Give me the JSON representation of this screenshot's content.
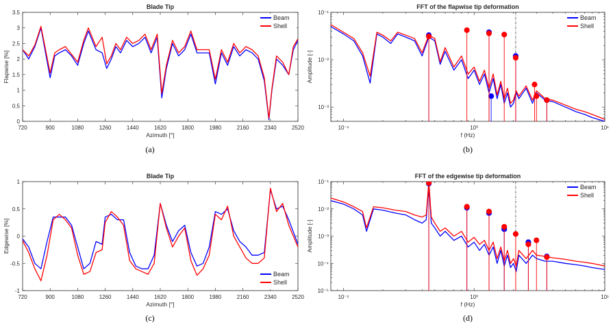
{
  "chart_data": [
    {
      "id": "a",
      "type": "line",
      "title": "Blade Tip",
      "xlabel": "Azimuth [°]",
      "ylabel": "Flapwise [%]",
      "caption": "(a)",
      "xlim": [
        720,
        2520
      ],
      "ylim": [
        0,
        3.5
      ],
      "xticks": [
        720,
        900,
        1080,
        1260,
        1440,
        1620,
        1800,
        1980,
        2160,
        2340,
        2520
      ],
      "yticks": [
        0,
        0.5,
        1,
        1.5,
        2,
        2.5,
        3,
        3.5
      ],
      "ytick_labels": [
        "0",
        "0.5",
        "1",
        "1.5",
        "2",
        "2.5",
        "3",
        "3.5"
      ],
      "legend_position": "top-right",
      "series": [
        {
          "name": "Beam",
          "color": "#0000ff",
          "x": [
            720,
            760,
            800,
            840,
            870,
            900,
            930,
            960,
            1000,
            1040,
            1080,
            1120,
            1150,
            1200,
            1240,
            1270,
            1300,
            1330,
            1360,
            1400,
            1440,
            1480,
            1520,
            1560,
            1600,
            1630,
            1660,
            1700,
            1740,
            1780,
            1820,
            1860,
            1900,
            1940,
            1980,
            2020,
            2060,
            2100,
            2140,
            2180,
            2220,
            2260,
            2300,
            2330,
            2350,
            2380,
            2420,
            2460,
            2490,
            2520
          ],
          "y": [
            2.3,
            2.0,
            2.4,
            3.0,
            2.2,
            1.4,
            2.1,
            2.2,
            2.3,
            2.1,
            1.8,
            2.5,
            2.9,
            2.3,
            2.2,
            1.7,
            2.0,
            2.4,
            2.2,
            2.6,
            2.4,
            2.5,
            2.7,
            2.2,
            2.7,
            0.75,
            1.7,
            2.5,
            2.1,
            2.3,
            2.8,
            2.2,
            2.2,
            2.2,
            1.2,
            2.2,
            1.8,
            2.4,
            2.1,
            2.3,
            2.2,
            2.0,
            1.3,
            0.05,
            1.0,
            2.0,
            1.8,
            1.5,
            2.3,
            2.6
          ]
        },
        {
          "name": "Shell",
          "color": "#ff0000",
          "x": [
            720,
            760,
            800,
            840,
            870,
            900,
            930,
            960,
            1000,
            1040,
            1080,
            1120,
            1150,
            1200,
            1240,
            1270,
            1300,
            1330,
            1360,
            1400,
            1440,
            1480,
            1520,
            1560,
            1600,
            1630,
            1660,
            1700,
            1740,
            1780,
            1820,
            1860,
            1900,
            1940,
            1980,
            2020,
            2060,
            2100,
            2140,
            2180,
            2220,
            2260,
            2300,
            2330,
            2350,
            2380,
            2420,
            2460,
            2490,
            2520
          ],
          "y": [
            2.3,
            2.1,
            2.45,
            3.05,
            2.3,
            1.55,
            2.2,
            2.3,
            2.4,
            2.15,
            1.9,
            2.6,
            3.0,
            2.4,
            2.7,
            1.85,
            2.1,
            2.5,
            2.3,
            2.7,
            2.5,
            2.6,
            2.8,
            2.3,
            2.8,
            0.9,
            1.8,
            2.6,
            2.2,
            2.4,
            2.9,
            2.3,
            2.3,
            2.3,
            1.35,
            2.3,
            1.9,
            2.5,
            2.2,
            2.4,
            2.3,
            2.1,
            1.4,
            0.1,
            1.05,
            2.1,
            1.9,
            1.5,
            2.4,
            2.65
          ]
        }
      ]
    },
    {
      "id": "b",
      "type": "line",
      "title": "FFT of the flapwise tip deformation",
      "xlabel": "f (Hz)",
      "ylabel": "Amplitude [-]",
      "caption": "(b)",
      "xscale": "log",
      "yscale": "log",
      "xlim": [
        0.08,
        10
      ],
      "ylim": [
        0.0005,
        0.1
      ],
      "xtick_labels": [
        "10^-1",
        "10^0",
        "10^1"
      ],
      "ytick_labels": [
        "10^-3",
        "10^-2",
        "10^-1"
      ],
      "vline_x": 2.08,
      "legend_position": "top-right",
      "series": [
        {
          "name": "Beam",
          "color": "#0000ff",
          "x": [
            0.08,
            0.1,
            0.12,
            0.14,
            0.16,
            0.18,
            0.2,
            0.23,
            0.26,
            0.3,
            0.35,
            0.4,
            0.45,
            0.5,
            0.55,
            0.6,
            0.7,
            0.8,
            0.9,
            1.0,
            1.1,
            1.2,
            1.3,
            1.4,
            1.5,
            1.6,
            1.7,
            1.8,
            1.9,
            2.0,
            2.1,
            2.2,
            2.5,
            2.8,
            3.0,
            3.5,
            4.0,
            5,
            6,
            7,
            8,
            10
          ],
          "y": [
            0.05,
            0.035,
            0.025,
            0.012,
            0.0032,
            0.035,
            0.03,
            0.022,
            0.035,
            0.03,
            0.025,
            0.012,
            0.03,
            0.025,
            0.008,
            0.015,
            0.006,
            0.01,
            0.004,
            0.006,
            0.003,
            0.005,
            0.002,
            0.004,
            0.0015,
            0.003,
            0.0012,
            0.002,
            0.001,
            0.0012,
            0.002,
            0.0015,
            0.0025,
            0.0012,
            0.002,
            0.0014,
            0.0013,
            0.001,
            0.0008,
            0.0007,
            0.0006,
            0.0005
          ]
        },
        {
          "name": "Shell",
          "color": "#ff0000",
          "x": [
            0.08,
            0.1,
            0.12,
            0.14,
            0.16,
            0.18,
            0.2,
            0.23,
            0.26,
            0.3,
            0.35,
            0.4,
            0.45,
            0.5,
            0.55,
            0.6,
            0.7,
            0.8,
            0.9,
            1.0,
            1.1,
            1.2,
            1.3,
            1.4,
            1.5,
            1.6,
            1.7,
            1.8,
            1.9,
            2.0,
            2.1,
            2.2,
            2.5,
            2.8,
            3.0,
            3.5,
            4.0,
            5,
            6,
            7,
            8,
            10
          ],
          "y": [
            0.055,
            0.038,
            0.028,
            0.014,
            0.0045,
            0.038,
            0.033,
            0.025,
            0.038,
            0.033,
            0.028,
            0.014,
            0.033,
            0.028,
            0.009,
            0.018,
            0.007,
            0.012,
            0.005,
            0.007,
            0.0035,
            0.006,
            0.0025,
            0.005,
            0.0018,
            0.0035,
            0.0015,
            0.0025,
            0.0012,
            0.0014,
            0.0022,
            0.0017,
            0.0028,
            0.0014,
            0.0022,
            0.0015,
            0.0014,
            0.0011,
            0.0009,
            0.0008,
            0.0007,
            0.00055
          ]
        }
      ],
      "markers": [
        {
          "series": "Beam",
          "x": [
            0.45,
            1.3,
            2.08,
            1.35,
            3.6
          ],
          "y": [
            0.033,
            0.038,
            0.012,
            0.0017,
            0.0014
          ]
        },
        {
          "series": "Shell",
          "x": [
            0.45,
            0.88,
            1.3,
            1.7,
            2.08,
            2.9,
            3.0,
            3.6
          ],
          "y": [
            0.031,
            0.042,
            0.036,
            0.034,
            0.011,
            0.003,
            0.0017,
            0.0014
          ]
        }
      ]
    },
    {
      "id": "c",
      "type": "line",
      "title": "Blade Tip",
      "xlabel": "Azimuth [°]",
      "ylabel": "Edgewise [%]",
      "caption": "(c)",
      "xlim": [
        720,
        2520
      ],
      "ylim": [
        -1,
        1
      ],
      "xticks": [
        720,
        900,
        1080,
        1260,
        1440,
        1620,
        1800,
        1980,
        2160,
        2340,
        2520
      ],
      "yticks": [
        -1,
        -0.5,
        0,
        0.5,
        1
      ],
      "ytick_labels": [
        "-1",
        "-0.5",
        "0",
        "0.5",
        "1"
      ],
      "legend_position": "bottom-right",
      "series": [
        {
          "name": "Beam",
          "color": "#0000ff",
          "x": [
            720,
            760,
            800,
            840,
            880,
            920,
            960,
            1000,
            1040,
            1080,
            1120,
            1160,
            1200,
            1240,
            1260,
            1300,
            1340,
            1380,
            1420,
            1460,
            1500,
            1540,
            1580,
            1620,
            1660,
            1700,
            1740,
            1780,
            1820,
            1860,
            1900,
            1940,
            1980,
            2020,
            2060,
            2100,
            2140,
            2180,
            2220,
            2260,
            2300,
            2340,
            2380,
            2420,
            2460,
            2520
          ],
          "y": [
            -0.05,
            -0.2,
            -0.5,
            -0.6,
            -0.1,
            0.35,
            0.35,
            0.35,
            0.2,
            -0.2,
            -0.6,
            -0.5,
            -0.1,
            -0.15,
            0.35,
            0.4,
            0.3,
            0.3,
            -0.3,
            -0.55,
            -0.6,
            -0.6,
            -0.35,
            0.6,
            0.2,
            -0.1,
            0.1,
            0.2,
            -0.3,
            -0.55,
            -0.5,
            -0.2,
            0.45,
            0.4,
            0.5,
            0.1,
            -0.1,
            -0.2,
            -0.35,
            -0.35,
            -0.3,
            0.85,
            0.5,
            0.55,
            0.3,
            -0.15
          ]
        },
        {
          "name": "Shell",
          "color": "#ff0000",
          "x": [
            720,
            760,
            800,
            840,
            880,
            920,
            960,
            1000,
            1040,
            1080,
            1120,
            1160,
            1200,
            1240,
            1260,
            1300,
            1340,
            1380,
            1420,
            1460,
            1500,
            1540,
            1580,
            1620,
            1660,
            1700,
            1740,
            1780,
            1820,
            1860,
            1900,
            1940,
            1980,
            2020,
            2060,
            2100,
            2140,
            2180,
            2220,
            2260,
            2300,
            2340,
            2380,
            2420,
            2460,
            2520
          ],
          "y": [
            -0.08,
            -0.3,
            -0.6,
            -0.82,
            -0.35,
            0.3,
            0.4,
            0.3,
            0.15,
            -0.35,
            -0.7,
            -0.65,
            -0.3,
            -0.25,
            0.25,
            0.45,
            0.35,
            0.2,
            -0.45,
            -0.6,
            -0.65,
            -0.7,
            -0.5,
            0.6,
            0.15,
            -0.2,
            0.0,
            0.15,
            -0.45,
            -0.72,
            -0.6,
            -0.35,
            0.4,
            0.3,
            0.55,
            0.0,
            -0.2,
            -0.4,
            -0.5,
            -0.5,
            -0.4,
            0.88,
            0.45,
            0.6,
            0.2,
            -0.2
          ]
        }
      ]
    },
    {
      "id": "d",
      "type": "line",
      "title": "FFT of the edgewise tip deformation",
      "xlabel": "f (Hz)",
      "ylabel": "Amplitude [-]",
      "caption": "(d)",
      "xscale": "log",
      "yscale": "log",
      "xlim": [
        0.08,
        10
      ],
      "ylim": [
        1e-05,
        0.1
      ],
      "xtick_labels": [
        "10^-1",
        "10^0",
        "10^1"
      ],
      "ytick_labels": [
        "10^-5",
        "10^-4",
        "10^-3",
        "10^-2",
        "10^-1"
      ],
      "vline_x": 2.08,
      "legend_position": "top-right",
      "series": [
        {
          "name": "Beam",
          "color": "#0000ff",
          "x": [
            0.08,
            0.1,
            0.12,
            0.14,
            0.15,
            0.17,
            0.2,
            0.25,
            0.3,
            0.35,
            0.4,
            0.43,
            0.45,
            0.47,
            0.5,
            0.55,
            0.6,
            0.7,
            0.8,
            0.9,
            1.0,
            1.1,
            1.2,
            1.3,
            1.4,
            1.5,
            1.6,
            1.7,
            1.8,
            1.9,
            2.0,
            2.1,
            2.2,
            2.5,
            2.8,
            3.0,
            3.5,
            4.0,
            5,
            6,
            7,
            8,
            10
          ],
          "y": [
            0.02,
            0.015,
            0.01,
            0.006,
            0.0015,
            0.01,
            0.009,
            0.007,
            0.006,
            0.004,
            0.003,
            0.004,
            0.09,
            0.003,
            0.002,
            0.001,
            0.0015,
            0.0007,
            0.001,
            0.0004,
            0.0006,
            0.0003,
            0.0005,
            0.0002,
            0.0004,
            0.0001,
            0.0003,
            8e-05,
            0.0002,
            7e-05,
            0.0001,
            5e-05,
            0.0002,
            0.0001,
            0.0002,
            0.00015,
            0.00012,
            0.00012,
            0.0001,
            9e-05,
            8e-05,
            7e-05,
            6e-05
          ]
        },
        {
          "name": "Shell",
          "color": "#ff0000",
          "x": [
            0.08,
            0.1,
            0.12,
            0.14,
            0.15,
            0.17,
            0.2,
            0.25,
            0.3,
            0.35,
            0.4,
            0.43,
            0.45,
            0.47,
            0.5,
            0.55,
            0.6,
            0.7,
            0.8,
            0.9,
            1.0,
            1.1,
            1.2,
            1.3,
            1.4,
            1.5,
            1.6,
            1.7,
            1.8,
            1.9,
            2.0,
            2.1,
            2.2,
            2.5,
            2.8,
            3.0,
            3.5,
            4.0,
            5,
            6,
            7,
            8,
            10
          ],
          "y": [
            0.025,
            0.018,
            0.012,
            0.008,
            0.002,
            0.012,
            0.011,
            0.009,
            0.008,
            0.006,
            0.005,
            0.006,
            0.1,
            0.005,
            0.003,
            0.0015,
            0.002,
            0.001,
            0.0015,
            0.0006,
            0.0009,
            0.0005,
            0.0007,
            0.0003,
            0.0006,
            0.00015,
            0.0004,
            0.00012,
            0.0003,
            0.0001,
            0.00015,
            8e-05,
            0.0003,
            0.00015,
            0.0003,
            0.0002,
            0.00018,
            0.00016,
            0.00014,
            0.00012,
            0.00011,
            0.0001,
            8e-05
          ]
        }
      ],
      "markers": [
        {
          "series": "Beam",
          "x": [
            0.45,
            0.88,
            1.3,
            1.7,
            2.6,
            3.6
          ],
          "y": [
            0.085,
            0.011,
            0.007,
            0.0018,
            0.0006,
            0.00018
          ]
        },
        {
          "series": "Shell",
          "x": [
            0.45,
            0.88,
            1.3,
            1.7,
            2.08,
            2.6,
            3.0,
            3.6
          ],
          "y": [
            0.09,
            0.012,
            0.008,
            0.0022,
            0.0012,
            0.0005,
            0.0007,
            0.00017
          ]
        }
      ]
    }
  ]
}
